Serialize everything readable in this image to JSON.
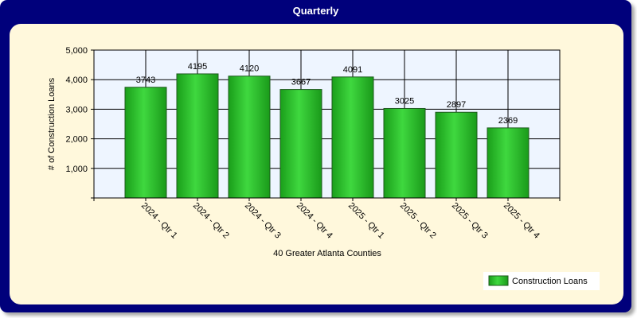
{
  "window": {
    "title": "Quarterly"
  },
  "colors": {
    "frame": "#00007b",
    "panel": "#fff8dc",
    "plot_bg": "#eef5ff",
    "bar": "#2ebc2e",
    "bar_stroke": "#1e5a1e"
  },
  "chart_data": {
    "type": "bar",
    "title": "Quarterly",
    "xlabel": "40 Greater Atlanta Counties",
    "ylabel": "# of Construction Loans",
    "categories": [
      "2024 - Qtr 1",
      "2024 - Qtr 2",
      "2024 - Qtr 3",
      "2024 - Qtr 4",
      "2025 - Qtr 1",
      "2025 - Qtr 2",
      "2025 - Qtr 3",
      "2025 - Qtr 4"
    ],
    "series": [
      {
        "name": "Construction Loans",
        "values": [
          3743,
          4195,
          4120,
          3667,
          4091,
          3025,
          2897,
          2369
        ]
      }
    ],
    "ylim": [
      0,
      5000
    ],
    "yticks": [
      1000,
      2000,
      3000,
      4000,
      5000
    ],
    "ytick_labels": [
      "1,000",
      "2,000",
      "3,000",
      "4,000",
      "5,000"
    ],
    "grid": true,
    "legend_position": "bottom-right"
  }
}
